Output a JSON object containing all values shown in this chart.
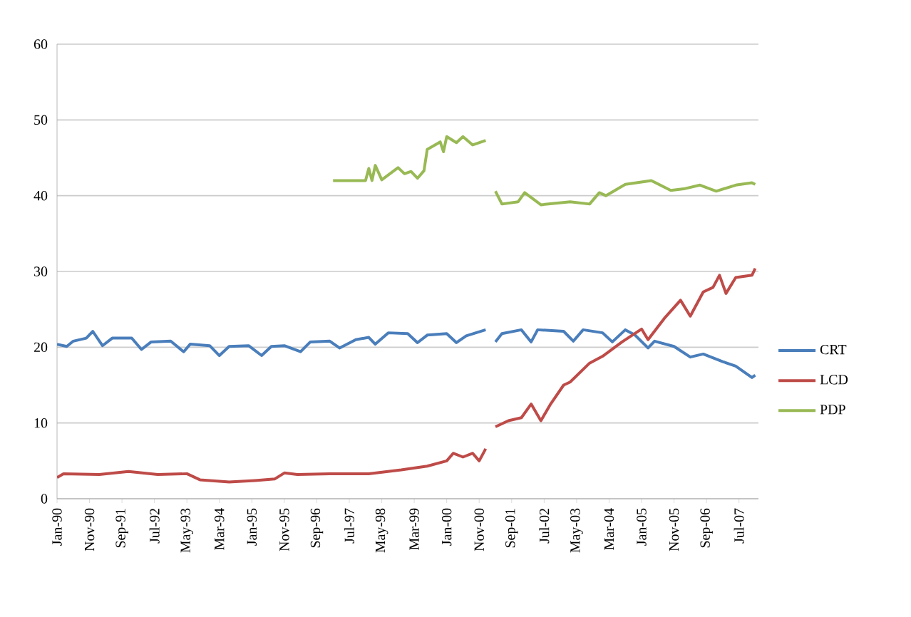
{
  "chart_data": {
    "type": "line",
    "xlim": [
      "1990-01",
      "2008-01"
    ],
    "xticks": [
      {
        "value": "1990-01",
        "label": "Jan-90"
      },
      {
        "value": "1990-11",
        "label": "Nov-90"
      },
      {
        "value": "1991-09",
        "label": "Sep-91"
      },
      {
        "value": "1992-07",
        "label": "Jul-92"
      },
      {
        "value": "1993-05",
        "label": "May-93"
      },
      {
        "value": "1994-03",
        "label": "Mar-94"
      },
      {
        "value": "1995-01",
        "label": "Jan-95"
      },
      {
        "value": "1995-11",
        "label": "Nov-95"
      },
      {
        "value": "1996-09",
        "label": "Sep-96"
      },
      {
        "value": "1997-07",
        "label": "Jul-97"
      },
      {
        "value": "1998-05",
        "label": "May-98"
      },
      {
        "value": "1999-03",
        "label": "Mar-99"
      },
      {
        "value": "2000-01",
        "label": "Jan-00"
      },
      {
        "value": "2000-11",
        "label": "Nov-00"
      },
      {
        "value": "2001-09",
        "label": "Sep-01"
      },
      {
        "value": "2002-07",
        "label": "Jul-02"
      },
      {
        "value": "2003-05",
        "label": "May-03"
      },
      {
        "value": "2004-03",
        "label": "Mar-04"
      },
      {
        "value": "2005-01",
        "label": "Jan-05"
      },
      {
        "value": "2005-11",
        "label": "Nov-05"
      },
      {
        "value": "2006-09",
        "label": "Sep-06"
      },
      {
        "value": "2007-07",
        "label": "Jul-07"
      }
    ],
    "ylim": [
      0,
      60
    ],
    "yticks": [
      0,
      10,
      20,
      30,
      40,
      50,
      60
    ],
    "grid": "y",
    "legend": "right",
    "marker": "none",
    "line_style": "solid",
    "series": [
      {
        "name": "CRT",
        "color": "#4a7ebb",
        "x": [
          "1990-01",
          "1990-04",
          "1990-06",
          "1990-10",
          "1990-12",
          "1991-03",
          "1991-06",
          "1991-12",
          "1992-03",
          "1992-06",
          "1992-12",
          "1993-04",
          "1993-06",
          "1993-12",
          "1994-03",
          "1994-06",
          "1994-12",
          "1995-04",
          "1995-07",
          "1995-11",
          "1996-04",
          "1996-07",
          "1997-01",
          "1997-04",
          "1997-09",
          "1998-01",
          "1998-03",
          "1998-07",
          "1999-01",
          "1999-04",
          "1999-07",
          "2000-01",
          "2000-04",
          "2000-07",
          "2001-01",
          "2001-02",
          "2001-04",
          "2001-06",
          "2001-12",
          "2002-03",
          "2002-05",
          "2003-01",
          "2003-04",
          "2003-07",
          "2004-01",
          "2004-04",
          "2004-08",
          "2004-11",
          "2005-03",
          "2005-05",
          "2005-11",
          "2006-04",
          "2006-08",
          "2007-02",
          "2007-06",
          "2007-11",
          "2007-12"
        ],
        "values": [
          20.4,
          20.1,
          20.8,
          21.2,
          22.1,
          20.2,
          21.2,
          21.2,
          19.7,
          20.7,
          20.8,
          19.4,
          20.4,
          20.2,
          18.9,
          20.1,
          20.2,
          18.9,
          20.1,
          20.2,
          19.4,
          20.7,
          20.8,
          19.9,
          21.0,
          21.3,
          20.4,
          21.9,
          21.8,
          20.6,
          21.6,
          21.8,
          20.6,
          21.5,
          22.3,
          null,
          20.7,
          21.8,
          22.3,
          20.7,
          22.3,
          22.1,
          20.8,
          22.3,
          21.9,
          20.7,
          22.3,
          21.6,
          19.9,
          20.8,
          20.1,
          18.7,
          19.1,
          18.1,
          17.5,
          16.0,
          16.3
        ]
      },
      {
        "name": "LCD",
        "color": "#be4b48",
        "x": [
          "1990-01",
          "1990-03",
          "1991-02",
          "1991-11",
          "1992-08",
          "1993-05",
          "1993-09",
          "1994-06",
          "1995-02",
          "1995-08",
          "1995-11",
          "1996-03",
          "1997-01",
          "1998-01",
          "1998-11",
          "1999-07",
          "2000-01",
          "2000-03",
          "2000-06",
          "2000-09",
          "2000-11",
          "2001-01",
          "2001-02",
          "2001-04",
          "2001-08",
          "2001-12",
          "2002-03",
          "2002-06",
          "2002-09",
          "2003-01",
          "2003-03",
          "2003-09",
          "2004-01",
          "2004-07",
          "2005-01",
          "2005-03",
          "2005-08",
          "2006-01",
          "2006-04",
          "2006-08",
          "2006-11",
          "2007-01",
          "2007-03",
          "2007-06",
          "2007-11",
          "2007-12"
        ],
        "values": [
          2.8,
          3.3,
          3.2,
          3.6,
          3.2,
          3.3,
          2.5,
          2.2,
          2.4,
          2.6,
          3.4,
          3.2,
          3.3,
          3.3,
          3.8,
          4.3,
          5.0,
          6.0,
          5.5,
          6.0,
          5.0,
          6.6,
          null,
          9.5,
          10.3,
          10.7,
          12.5,
          10.3,
          12.5,
          15.0,
          15.4,
          17.9,
          18.8,
          20.7,
          22.4,
          21.0,
          23.8,
          26.2,
          24.1,
          27.3,
          27.9,
          29.5,
          27.1,
          29.2,
          29.5,
          30.4
        ]
      },
      {
        "name": "PDP",
        "color": "#98b954",
        "x": [
          "1997-02",
          "1997-12",
          "1998-01",
          "1998-02",
          "1998-03",
          "1998-05",
          "1998-10",
          "1998-12",
          "1999-02",
          "1999-04",
          "1999-06",
          "1999-07",
          "1999-11",
          "1999-12",
          "2000-01",
          "2000-04",
          "2000-06",
          "2000-09",
          "2001-01",
          "2001-02",
          "2001-04",
          "2001-06",
          "2001-11",
          "2002-01",
          "2002-06",
          "2003-03",
          "2003-09",
          "2003-12",
          "2004-02",
          "2004-08",
          "2005-04",
          "2005-10",
          "2006-02",
          "2006-07",
          "2006-12",
          "2007-06",
          "2007-11",
          "2007-12"
        ],
        "values": [
          42.0,
          42.0,
          43.6,
          42.0,
          44.0,
          42.1,
          43.7,
          42.9,
          43.2,
          42.3,
          43.3,
          46.1,
          47.1,
          45.8,
          47.8,
          47.0,
          47.8,
          46.7,
          47.3,
          null,
          40.6,
          38.9,
          39.2,
          40.4,
          38.8,
          39.2,
          38.9,
          40.4,
          40.0,
          41.5,
          42.0,
          40.7,
          40.9,
          41.4,
          40.6,
          41.4,
          41.7,
          41.5
        ]
      }
    ]
  }
}
